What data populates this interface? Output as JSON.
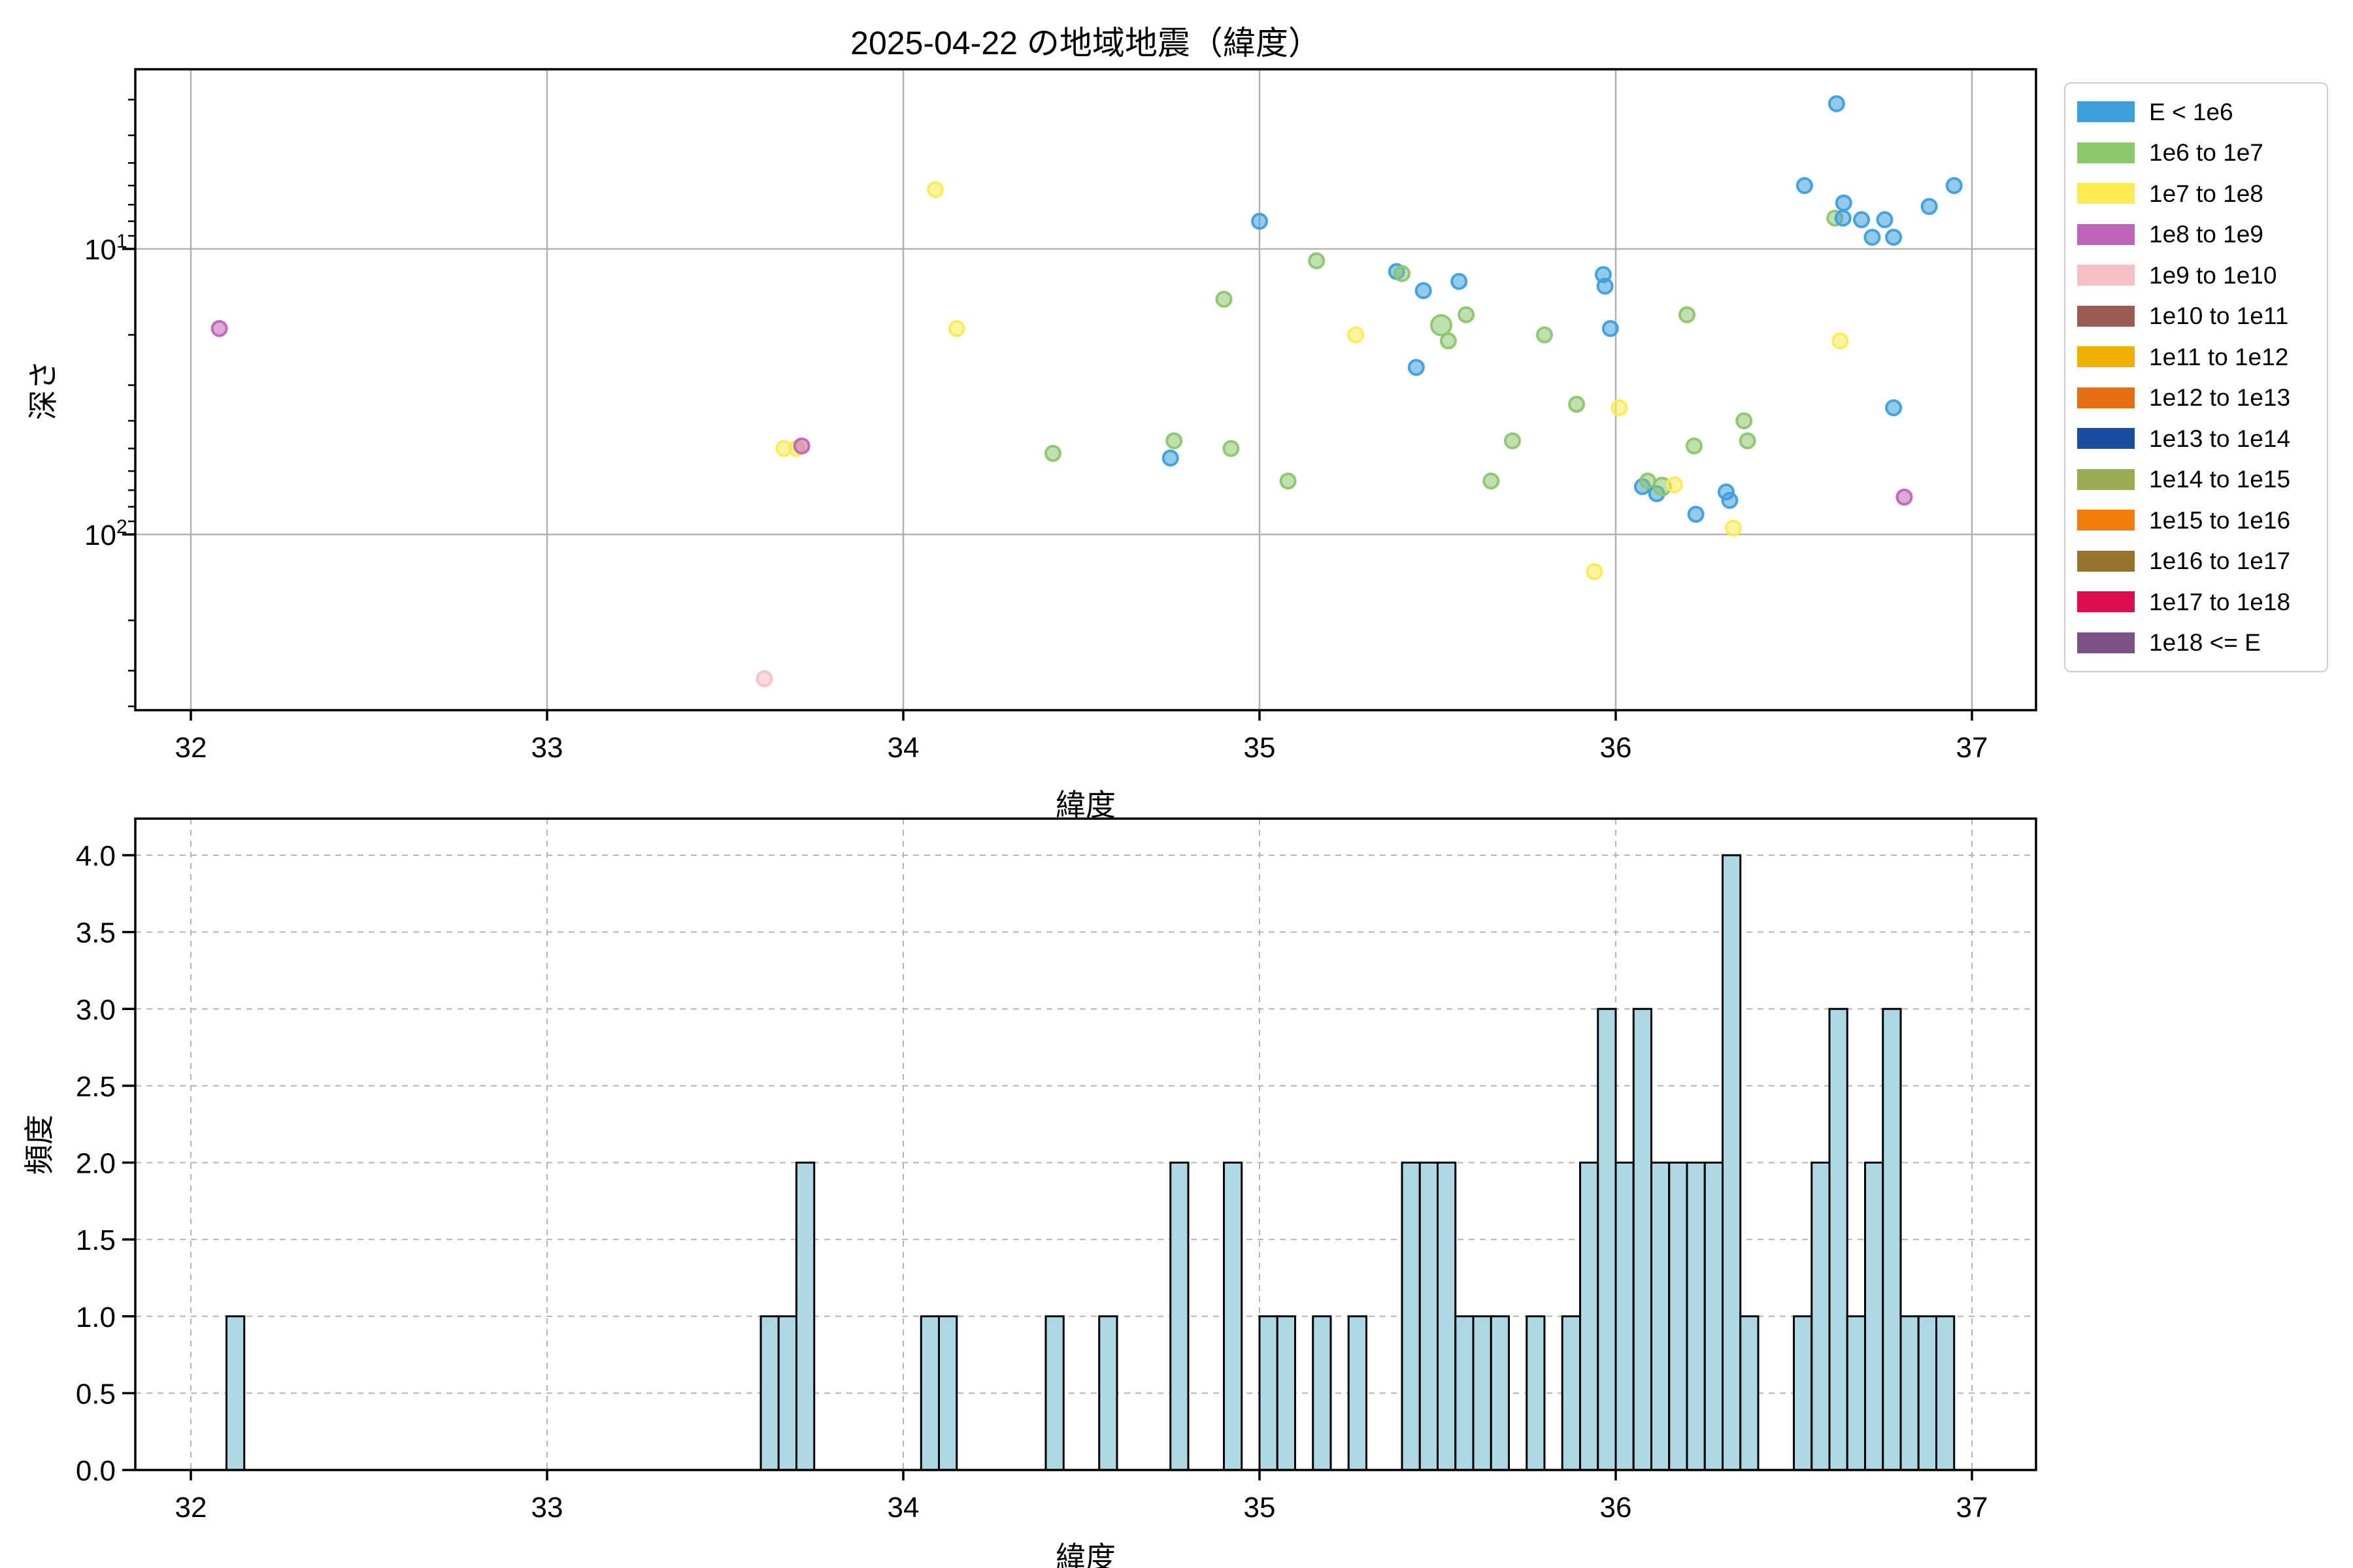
{
  "title": "2025-04-22 の地域地震（緯度）",
  "legend": {
    "entries": [
      {
        "label": "E < 1e6",
        "color": "#3d9fdc"
      },
      {
        "label": "1e6 to 1e7",
        "color": "#8cc66d"
      },
      {
        "label": "1e7 to 1e8",
        "color": "#fbeb55"
      },
      {
        "label": "1e8 to 1e9",
        "color": "#bf63ba"
      },
      {
        "label": "1e9 to 1e10",
        "color": "#f4c0c6"
      },
      {
        "label": "1e10 to 1e11",
        "color": "#9a5b52"
      },
      {
        "label": "1e11 to 1e12",
        "color": "#f0b000"
      },
      {
        "label": "1e12 to 1e13",
        "color": "#e66e11"
      },
      {
        "label": "1e13 to 1e14",
        "color": "#1c4c9f"
      },
      {
        "label": "1e14 to 1e15",
        "color": "#9bab51"
      },
      {
        "label": "1e15 to 1e16",
        "color": "#f27d0c"
      },
      {
        "label": "1e16 to 1e17",
        "color": "#97742b"
      },
      {
        "label": "1e17 to 1e18",
        "color": "#de0d50"
      },
      {
        "label": "1e18 <= E",
        "color": "#7c5284"
      }
    ]
  },
  "chart_data": [
    {
      "type": "scatter",
      "title": "",
      "xlabel": "緯度",
      "ylabel": "深さ",
      "x_ticks": [
        32,
        33,
        34,
        35,
        36,
        37
      ],
      "xlim": [
        31.844,
        37.185
      ],
      "y_scale": "log-inverted",
      "ylim": [
        2.35,
        412
      ],
      "y_ticks": [
        {
          "base": "10",
          "exp": "1",
          "value": 10
        },
        {
          "base": "10",
          "exp": "2",
          "value": 100
        }
      ],
      "y_minor_ticks": [
        3,
        4,
        5,
        6,
        7,
        8,
        9,
        20,
        30,
        40,
        50,
        60,
        70,
        80,
        90,
        200,
        300,
        400
      ],
      "grid": "solid",
      "series_note": "points are [latitude, depth, legend_category_index, optional_radius]",
      "points": [
        [
          32.08,
          19,
          3
        ],
        [
          33.61,
          320,
          4
        ],
        [
          33.665,
          50,
          2
        ],
        [
          33.7,
          50,
          2
        ],
        [
          33.715,
          49,
          3
        ],
        [
          34.09,
          6.2,
          2
        ],
        [
          34.15,
          19,
          2
        ],
        [
          34.42,
          52,
          1
        ],
        [
          34.75,
          54,
          0
        ],
        [
          34.76,
          47,
          1
        ],
        [
          34.9,
          15,
          1
        ],
        [
          34.92,
          50,
          1
        ],
        [
          35.0,
          8,
          0
        ],
        [
          35.08,
          65,
          1
        ],
        [
          35.16,
          11,
          1
        ],
        [
          35.27,
          20,
          2
        ],
        [
          35.385,
          12,
          0
        ],
        [
          35.4,
          12.2,
          1
        ],
        [
          35.44,
          26,
          0
        ],
        [
          35.46,
          14,
          0
        ],
        [
          35.51,
          18.5,
          1,
          15
        ],
        [
          35.53,
          21,
          1
        ],
        [
          35.56,
          13,
          0
        ],
        [
          35.58,
          17,
          1
        ],
        [
          35.65,
          65,
          1
        ],
        [
          35.71,
          47,
          1
        ],
        [
          35.8,
          20,
          1
        ],
        [
          35.89,
          35,
          1
        ],
        [
          35.94,
          135,
          2
        ],
        [
          35.965,
          12.3,
          0
        ],
        [
          35.97,
          13.5,
          0
        ],
        [
          35.985,
          19,
          0
        ],
        [
          36.01,
          36,
          2
        ],
        [
          36.075,
          68,
          0
        ],
        [
          36.09,
          65,
          1
        ],
        [
          36.115,
          72,
          0
        ],
        [
          36.13,
          68,
          1,
          13
        ],
        [
          36.165,
          67,
          2
        ],
        [
          36.2,
          17,
          1
        ],
        [
          36.22,
          49,
          1
        ],
        [
          36.225,
          85,
          0
        ],
        [
          36.31,
          71,
          0
        ],
        [
          36.32,
          76,
          0
        ],
        [
          36.33,
          95,
          2
        ],
        [
          36.36,
          40,
          1
        ],
        [
          36.37,
          47,
          1
        ],
        [
          36.53,
          6,
          0
        ],
        [
          36.62,
          3.1,
          0
        ],
        [
          36.615,
          7.8,
          1
        ],
        [
          36.638,
          7.8,
          0
        ],
        [
          36.64,
          6.9,
          0
        ],
        [
          36.63,
          21,
          2
        ],
        [
          36.69,
          7.9,
          0
        ],
        [
          36.72,
          9.1,
          0
        ],
        [
          36.755,
          7.9,
          0
        ],
        [
          36.78,
          9.1,
          0
        ],
        [
          36.78,
          36,
          0
        ],
        [
          36.81,
          74,
          3
        ],
        [
          36.88,
          7.1,
          0
        ],
        [
          36.95,
          6,
          0
        ]
      ]
    },
    {
      "type": "bar",
      "title": "",
      "xlabel": "緯度",
      "ylabel": "頻度",
      "x_ticks": [
        32,
        33,
        34,
        35,
        36,
        37
      ],
      "xlim": [
        31.844,
        37.185
      ],
      "y_ticks": [
        "0.0",
        "0.5",
        "1.0",
        "1.5",
        "2.0",
        "2.5",
        "3.0",
        "3.5",
        "4.0"
      ],
      "ylim": [
        0,
        4.24
      ],
      "grid": "dashed",
      "bar_color": "#add8e6",
      "bar_edge_color": "#000000",
      "bin_width": 0.05,
      "bins_note": "bins are [bin_start_latitude, frequency]",
      "bins": [
        [
          32.1,
          1
        ],
        [
          33.6,
          1
        ],
        [
          33.65,
          1
        ],
        [
          33.7,
          2
        ],
        [
          34.05,
          1
        ],
        [
          34.1,
          1
        ],
        [
          34.4,
          1
        ],
        [
          34.55,
          1
        ],
        [
          34.75,
          2
        ],
        [
          34.9,
          2
        ],
        [
          35.0,
          1
        ],
        [
          35.05,
          1
        ],
        [
          35.15,
          1
        ],
        [
          35.25,
          1
        ],
        [
          35.4,
          2
        ],
        [
          35.45,
          2
        ],
        [
          35.5,
          2
        ],
        [
          35.55,
          1
        ],
        [
          35.6,
          1
        ],
        [
          35.65,
          1
        ],
        [
          35.75,
          1
        ],
        [
          35.85,
          1
        ],
        [
          35.9,
          2
        ],
        [
          35.95,
          3
        ],
        [
          36.0,
          2
        ],
        [
          36.05,
          3
        ],
        [
          36.1,
          2
        ],
        [
          36.15,
          2
        ],
        [
          36.2,
          2
        ],
        [
          36.25,
          2
        ],
        [
          36.3,
          4
        ],
        [
          36.35,
          1
        ],
        [
          36.5,
          1
        ],
        [
          36.55,
          2
        ],
        [
          36.6,
          3
        ],
        [
          36.65,
          1
        ],
        [
          36.7,
          2
        ],
        [
          36.75,
          3
        ],
        [
          36.8,
          1
        ],
        [
          36.85,
          1
        ],
        [
          36.9,
          1
        ]
      ]
    }
  ]
}
